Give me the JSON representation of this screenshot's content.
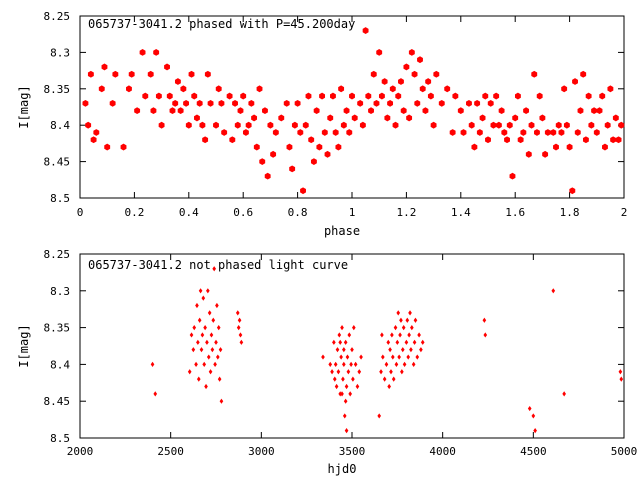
{
  "colors": {
    "points": "#ff0000",
    "axes": "#000000",
    "background": "#ffffff"
  },
  "chart_data": [
    {
      "type": "scatter",
      "title": "065737-3041.2 phased with P=45.200day",
      "xlabel": "phase",
      "ylabel": "I[mag]",
      "xlim": [
        0,
        2
      ],
      "ylim": [
        8.25,
        8.5
      ],
      "y_inverted": true,
      "xticks": [
        0,
        0.2,
        0.4,
        0.6,
        0.8,
        1,
        1.2,
        1.4,
        1.6,
        1.8,
        2
      ],
      "xtick_labels": [
        "0",
        "0.2",
        "0.4",
        "0.6",
        "0.8",
        "1",
        "1.2",
        "1.4",
        "1.6",
        "1.8",
        "2"
      ],
      "yticks": [
        8.25,
        8.3,
        8.35,
        8.4,
        8.45,
        8.5
      ],
      "ytick_labels": [
        "8.25",
        "8.3",
        "8.35",
        "8.4",
        "8.45",
        "8.5"
      ],
      "marker": "filled-hexagon",
      "points": [
        [
          0.02,
          8.37
        ],
        [
          0.03,
          8.4
        ],
        [
          0.04,
          8.33
        ],
        [
          0.05,
          8.42
        ],
        [
          0.06,
          8.41
        ],
        [
          0.08,
          8.35
        ],
        [
          0.09,
          8.32
        ],
        [
          0.1,
          8.43
        ],
        [
          0.12,
          8.37
        ],
        [
          0.13,
          8.33
        ],
        [
          0.16,
          8.43
        ],
        [
          0.18,
          8.35
        ],
        [
          0.19,
          8.33
        ],
        [
          0.21,
          8.38
        ],
        [
          0.23,
          8.3
        ],
        [
          0.24,
          8.36
        ],
        [
          0.26,
          8.33
        ],
        [
          0.27,
          8.38
        ],
        [
          0.28,
          8.3
        ],
        [
          0.29,
          8.36
        ],
        [
          0.3,
          8.4
        ],
        [
          0.32,
          8.32
        ],
        [
          0.33,
          8.36
        ],
        [
          0.34,
          8.38
        ],
        [
          0.35,
          8.37
        ],
        [
          0.36,
          8.34
        ],
        [
          0.37,
          8.38
        ],
        [
          0.38,
          8.35
        ],
        [
          0.39,
          8.37
        ],
        [
          0.4,
          8.4
        ],
        [
          0.41,
          8.33
        ],
        [
          0.42,
          8.36
        ],
        [
          0.43,
          8.39
        ],
        [
          0.44,
          8.37
        ],
        [
          0.45,
          8.4
        ],
        [
          0.46,
          8.42
        ],
        [
          0.47,
          8.33
        ],
        [
          0.48,
          8.37
        ],
        [
          0.5,
          8.4
        ],
        [
          0.51,
          8.35
        ],
        [
          0.52,
          8.37
        ],
        [
          0.53,
          8.41
        ],
        [
          0.55,
          8.36
        ],
        [
          0.56,
          8.42
        ],
        [
          0.57,
          8.37
        ],
        [
          0.58,
          8.4
        ],
        [
          0.59,
          8.38
        ],
        [
          0.6,
          8.36
        ],
        [
          0.61,
          8.41
        ],
        [
          0.62,
          8.4
        ],
        [
          0.63,
          8.37
        ],
        [
          0.64,
          8.39
        ],
        [
          0.65,
          8.43
        ],
        [
          0.66,
          8.35
        ],
        [
          0.67,
          8.45
        ],
        [
          0.68,
          8.38
        ],
        [
          0.69,
          8.47
        ],
        [
          0.7,
          8.4
        ],
        [
          0.71,
          8.44
        ],
        [
          0.72,
          8.41
        ],
        [
          0.74,
          8.39
        ],
        [
          0.76,
          8.37
        ],
        [
          0.77,
          8.43
        ],
        [
          0.78,
          8.46
        ],
        [
          0.79,
          8.4
        ],
        [
          0.8,
          8.37
        ],
        [
          0.81,
          8.41
        ],
        [
          0.82,
          8.49
        ],
        [
          0.83,
          8.4
        ],
        [
          0.84,
          8.36
        ],
        [
          0.85,
          8.42
        ],
        [
          0.86,
          8.45
        ],
        [
          0.87,
          8.38
        ],
        [
          0.88,
          8.43
        ],
        [
          0.89,
          8.36
        ],
        [
          0.9,
          8.41
        ],
        [
          0.91,
          8.44
        ],
        [
          0.92,
          8.39
        ],
        [
          0.93,
          8.36
        ],
        [
          0.94,
          8.41
        ],
        [
          0.95,
          8.43
        ],
        [
          0.96,
          8.35
        ],
        [
          0.97,
          8.4
        ],
        [
          0.98,
          8.38
        ],
        [
          0.99,
          8.41
        ],
        [
          1.0,
          8.36
        ],
        [
          1.01,
          8.39
        ],
        [
          1.03,
          8.37
        ],
        [
          1.04,
          8.4
        ],
        [
          1.05,
          8.27
        ],
        [
          1.06,
          8.36
        ],
        [
          1.07,
          8.38
        ],
        [
          1.08,
          8.33
        ],
        [
          1.09,
          8.37
        ],
        [
          1.1,
          8.3
        ],
        [
          1.11,
          8.36
        ],
        [
          1.12,
          8.34
        ],
        [
          1.13,
          8.39
        ],
        [
          1.14,
          8.37
        ],
        [
          1.15,
          8.35
        ],
        [
          1.16,
          8.4
        ],
        [
          1.17,
          8.36
        ],
        [
          1.18,
          8.34
        ],
        [
          1.19,
          8.38
        ],
        [
          1.2,
          8.32
        ],
        [
          1.21,
          8.39
        ],
        [
          1.22,
          8.3
        ],
        [
          1.23,
          8.33
        ],
        [
          1.24,
          8.37
        ],
        [
          1.25,
          8.31
        ],
        [
          1.26,
          8.35
        ],
        [
          1.27,
          8.38
        ],
        [
          1.28,
          8.34
        ],
        [
          1.29,
          8.36
        ],
        [
          1.3,
          8.4
        ],
        [
          1.31,
          8.33
        ],
        [
          1.33,
          8.37
        ],
        [
          1.35,
          8.35
        ],
        [
          1.37,
          8.41
        ],
        [
          1.38,
          8.36
        ],
        [
          1.4,
          8.38
        ],
        [
          1.41,
          8.41
        ],
        [
          1.43,
          8.37
        ],
        [
          1.44,
          8.4
        ],
        [
          1.45,
          8.43
        ],
        [
          1.46,
          8.37
        ],
        [
          1.47,
          8.41
        ],
        [
          1.48,
          8.39
        ],
        [
          1.49,
          8.36
        ],
        [
          1.5,
          8.42
        ],
        [
          1.51,
          8.37
        ],
        [
          1.52,
          8.4
        ],
        [
          1.53,
          8.36
        ],
        [
          1.54,
          8.4
        ],
        [
          1.55,
          8.38
        ],
        [
          1.56,
          8.41
        ],
        [
          1.57,
          8.42
        ],
        [
          1.58,
          8.4
        ],
        [
          1.59,
          8.47
        ],
        [
          1.6,
          8.39
        ],
        [
          1.61,
          8.36
        ],
        [
          1.62,
          8.42
        ],
        [
          1.63,
          8.41
        ],
        [
          1.64,
          8.38
        ],
        [
          1.65,
          8.44
        ],
        [
          1.66,
          8.4
        ],
        [
          1.67,
          8.33
        ],
        [
          1.68,
          8.41
        ],
        [
          1.69,
          8.36
        ],
        [
          1.7,
          8.39
        ],
        [
          1.71,
          8.44
        ],
        [
          1.72,
          8.41
        ],
        [
          1.74,
          8.41
        ],
        [
          1.75,
          8.43
        ],
        [
          1.76,
          8.4
        ],
        [
          1.77,
          8.41
        ],
        [
          1.78,
          8.35
        ],
        [
          1.79,
          8.4
        ],
        [
          1.8,
          8.43
        ],
        [
          1.81,
          8.49
        ],
        [
          1.82,
          8.34
        ],
        [
          1.83,
          8.41
        ],
        [
          1.84,
          8.38
        ],
        [
          1.85,
          8.33
        ],
        [
          1.86,
          8.42
        ],
        [
          1.87,
          8.36
        ],
        [
          1.88,
          8.4
        ],
        [
          1.89,
          8.38
        ],
        [
          1.9,
          8.41
        ],
        [
          1.91,
          8.38
        ],
        [
          1.92,
          8.36
        ],
        [
          1.93,
          8.43
        ],
        [
          1.94,
          8.4
        ],
        [
          1.95,
          8.35
        ],
        [
          1.96,
          8.42
        ],
        [
          1.97,
          8.39
        ],
        [
          1.98,
          8.42
        ],
        [
          1.99,
          8.4
        ]
      ]
    },
    {
      "type": "scatter",
      "title": "065737-3041.2 not phased light curve",
      "xlabel": "hjd0",
      "ylabel": "I[mag]",
      "xlim": [
        2000,
        5000
      ],
      "ylim": [
        8.25,
        8.5
      ],
      "y_inverted": true,
      "xticks": [
        2000,
        2500,
        3000,
        3500,
        4000,
        4500,
        5000
      ],
      "xtick_labels": [
        "2000",
        "2500",
        "3000",
        "3500",
        "4000",
        "4500",
        "5000"
      ],
      "yticks": [
        8.25,
        8.3,
        8.35,
        8.4,
        8.45,
        8.5
      ],
      "ytick_labels": [
        "8.25",
        "8.3",
        "8.35",
        "8.4",
        "8.45",
        "8.5"
      ],
      "marker": "small-diamond",
      "points": [
        [
          2400,
          8.4
        ],
        [
          2415,
          8.44
        ],
        [
          2605,
          8.41
        ],
        [
          2615,
          8.36
        ],
        [
          2625,
          8.38
        ],
        [
          2630,
          8.35
        ],
        [
          2640,
          8.4
        ],
        [
          2645,
          8.32
        ],
        [
          2650,
          8.37
        ],
        [
          2655,
          8.42
        ],
        [
          2660,
          8.34
        ],
        [
          2665,
          8.3
        ],
        [
          2670,
          8.38
        ],
        [
          2675,
          8.36
        ],
        [
          2680,
          8.31
        ],
        [
          2685,
          8.4
        ],
        [
          2690,
          8.35
        ],
        [
          2695,
          8.43
        ],
        [
          2700,
          8.37
        ],
        [
          2705,
          8.3
        ],
        [
          2710,
          8.39
        ],
        [
          2715,
          8.33
        ],
        [
          2720,
          8.41
        ],
        [
          2725,
          8.36
        ],
        [
          2730,
          8.38
        ],
        [
          2735,
          8.34
        ],
        [
          2740,
          8.27
        ],
        [
          2745,
          8.4
        ],
        [
          2750,
          8.37
        ],
        [
          2755,
          8.32
        ],
        [
          2760,
          8.39
        ],
        [
          2765,
          8.35
        ],
        [
          2770,
          8.42
        ],
        [
          2775,
          8.38
        ],
        [
          2780,
          8.45
        ],
        [
          2870,
          8.33
        ],
        [
          2875,
          8.35
        ],
        [
          2880,
          8.34
        ],
        [
          2885,
          8.36
        ],
        [
          2890,
          8.37
        ],
        [
          3340,
          8.39
        ],
        [
          3380,
          8.4
        ],
        [
          3390,
          8.41
        ],
        [
          3400,
          8.37
        ],
        [
          3405,
          8.42
        ],
        [
          3410,
          8.4
        ],
        [
          3415,
          8.43
        ],
        [
          3420,
          8.38
        ],
        [
          3425,
          8.41
        ],
        [
          3430,
          8.36
        ],
        [
          3435,
          8.44
        ],
        [
          3440,
          8.39
        ],
        [
          3445,
          8.35
        ],
        [
          3450,
          8.42
        ],
        [
          3455,
          8.4
        ],
        [
          3460,
          8.47
        ],
        [
          3465,
          8.37
        ],
        [
          3470,
          8.43
        ],
        [
          3475,
          8.39
        ],
        [
          3480,
          8.41
        ],
        [
          3485,
          8.36
        ],
        [
          3490,
          8.44
        ],
        [
          3495,
          8.4
        ],
        [
          3500,
          8.38
        ],
        [
          3505,
          8.42
        ],
        [
          3510,
          8.35
        ],
        [
          3520,
          8.4
        ],
        [
          3530,
          8.43
        ],
        [
          3540,
          8.41
        ],
        [
          3550,
          8.39
        ],
        [
          3470,
          8.49
        ],
        [
          3465,
          8.45
        ],
        [
          3455,
          8.38
        ],
        [
          3445,
          8.44
        ],
        [
          3435,
          8.37
        ],
        [
          3650,
          8.47
        ],
        [
          3660,
          8.41
        ],
        [
          3665,
          8.36
        ],
        [
          3670,
          8.39
        ],
        [
          3680,
          8.42
        ],
        [
          3690,
          8.4
        ],
        [
          3700,
          8.37
        ],
        [
          3705,
          8.43
        ],
        [
          3710,
          8.38
        ],
        [
          3715,
          8.41
        ],
        [
          3720,
          8.36
        ],
        [
          3725,
          8.39
        ],
        [
          3730,
          8.42
        ],
        [
          3740,
          8.35
        ],
        [
          3745,
          8.4
        ],
        [
          3750,
          8.37
        ],
        [
          3755,
          8.33
        ],
        [
          3760,
          8.39
        ],
        [
          3765,
          8.36
        ],
        [
          3770,
          8.34
        ],
        [
          3775,
          8.41
        ],
        [
          3780,
          8.38
        ],
        [
          3785,
          8.35
        ],
        [
          3790,
          8.4
        ],
        [
          3800,
          8.37
        ],
        [
          3805,
          8.34
        ],
        [
          3810,
          8.39
        ],
        [
          3815,
          8.36
        ],
        [
          3820,
          8.33
        ],
        [
          3825,
          8.38
        ],
        [
          3830,
          8.35
        ],
        [
          3840,
          8.4
        ],
        [
          3845,
          8.37
        ],
        [
          3850,
          8.34
        ],
        [
          3860,
          8.39
        ],
        [
          3870,
          8.36
        ],
        [
          3880,
          8.38
        ],
        [
          3890,
          8.37
        ],
        [
          4230,
          8.34
        ],
        [
          4235,
          8.36
        ],
        [
          4480,
          8.46
        ],
        [
          4500,
          8.47
        ],
        [
          4510,
          8.49
        ],
        [
          4610,
          8.3
        ],
        [
          4670,
          8.44
        ],
        [
          4980,
          8.41
        ],
        [
          4985,
          8.42
        ]
      ]
    }
  ]
}
